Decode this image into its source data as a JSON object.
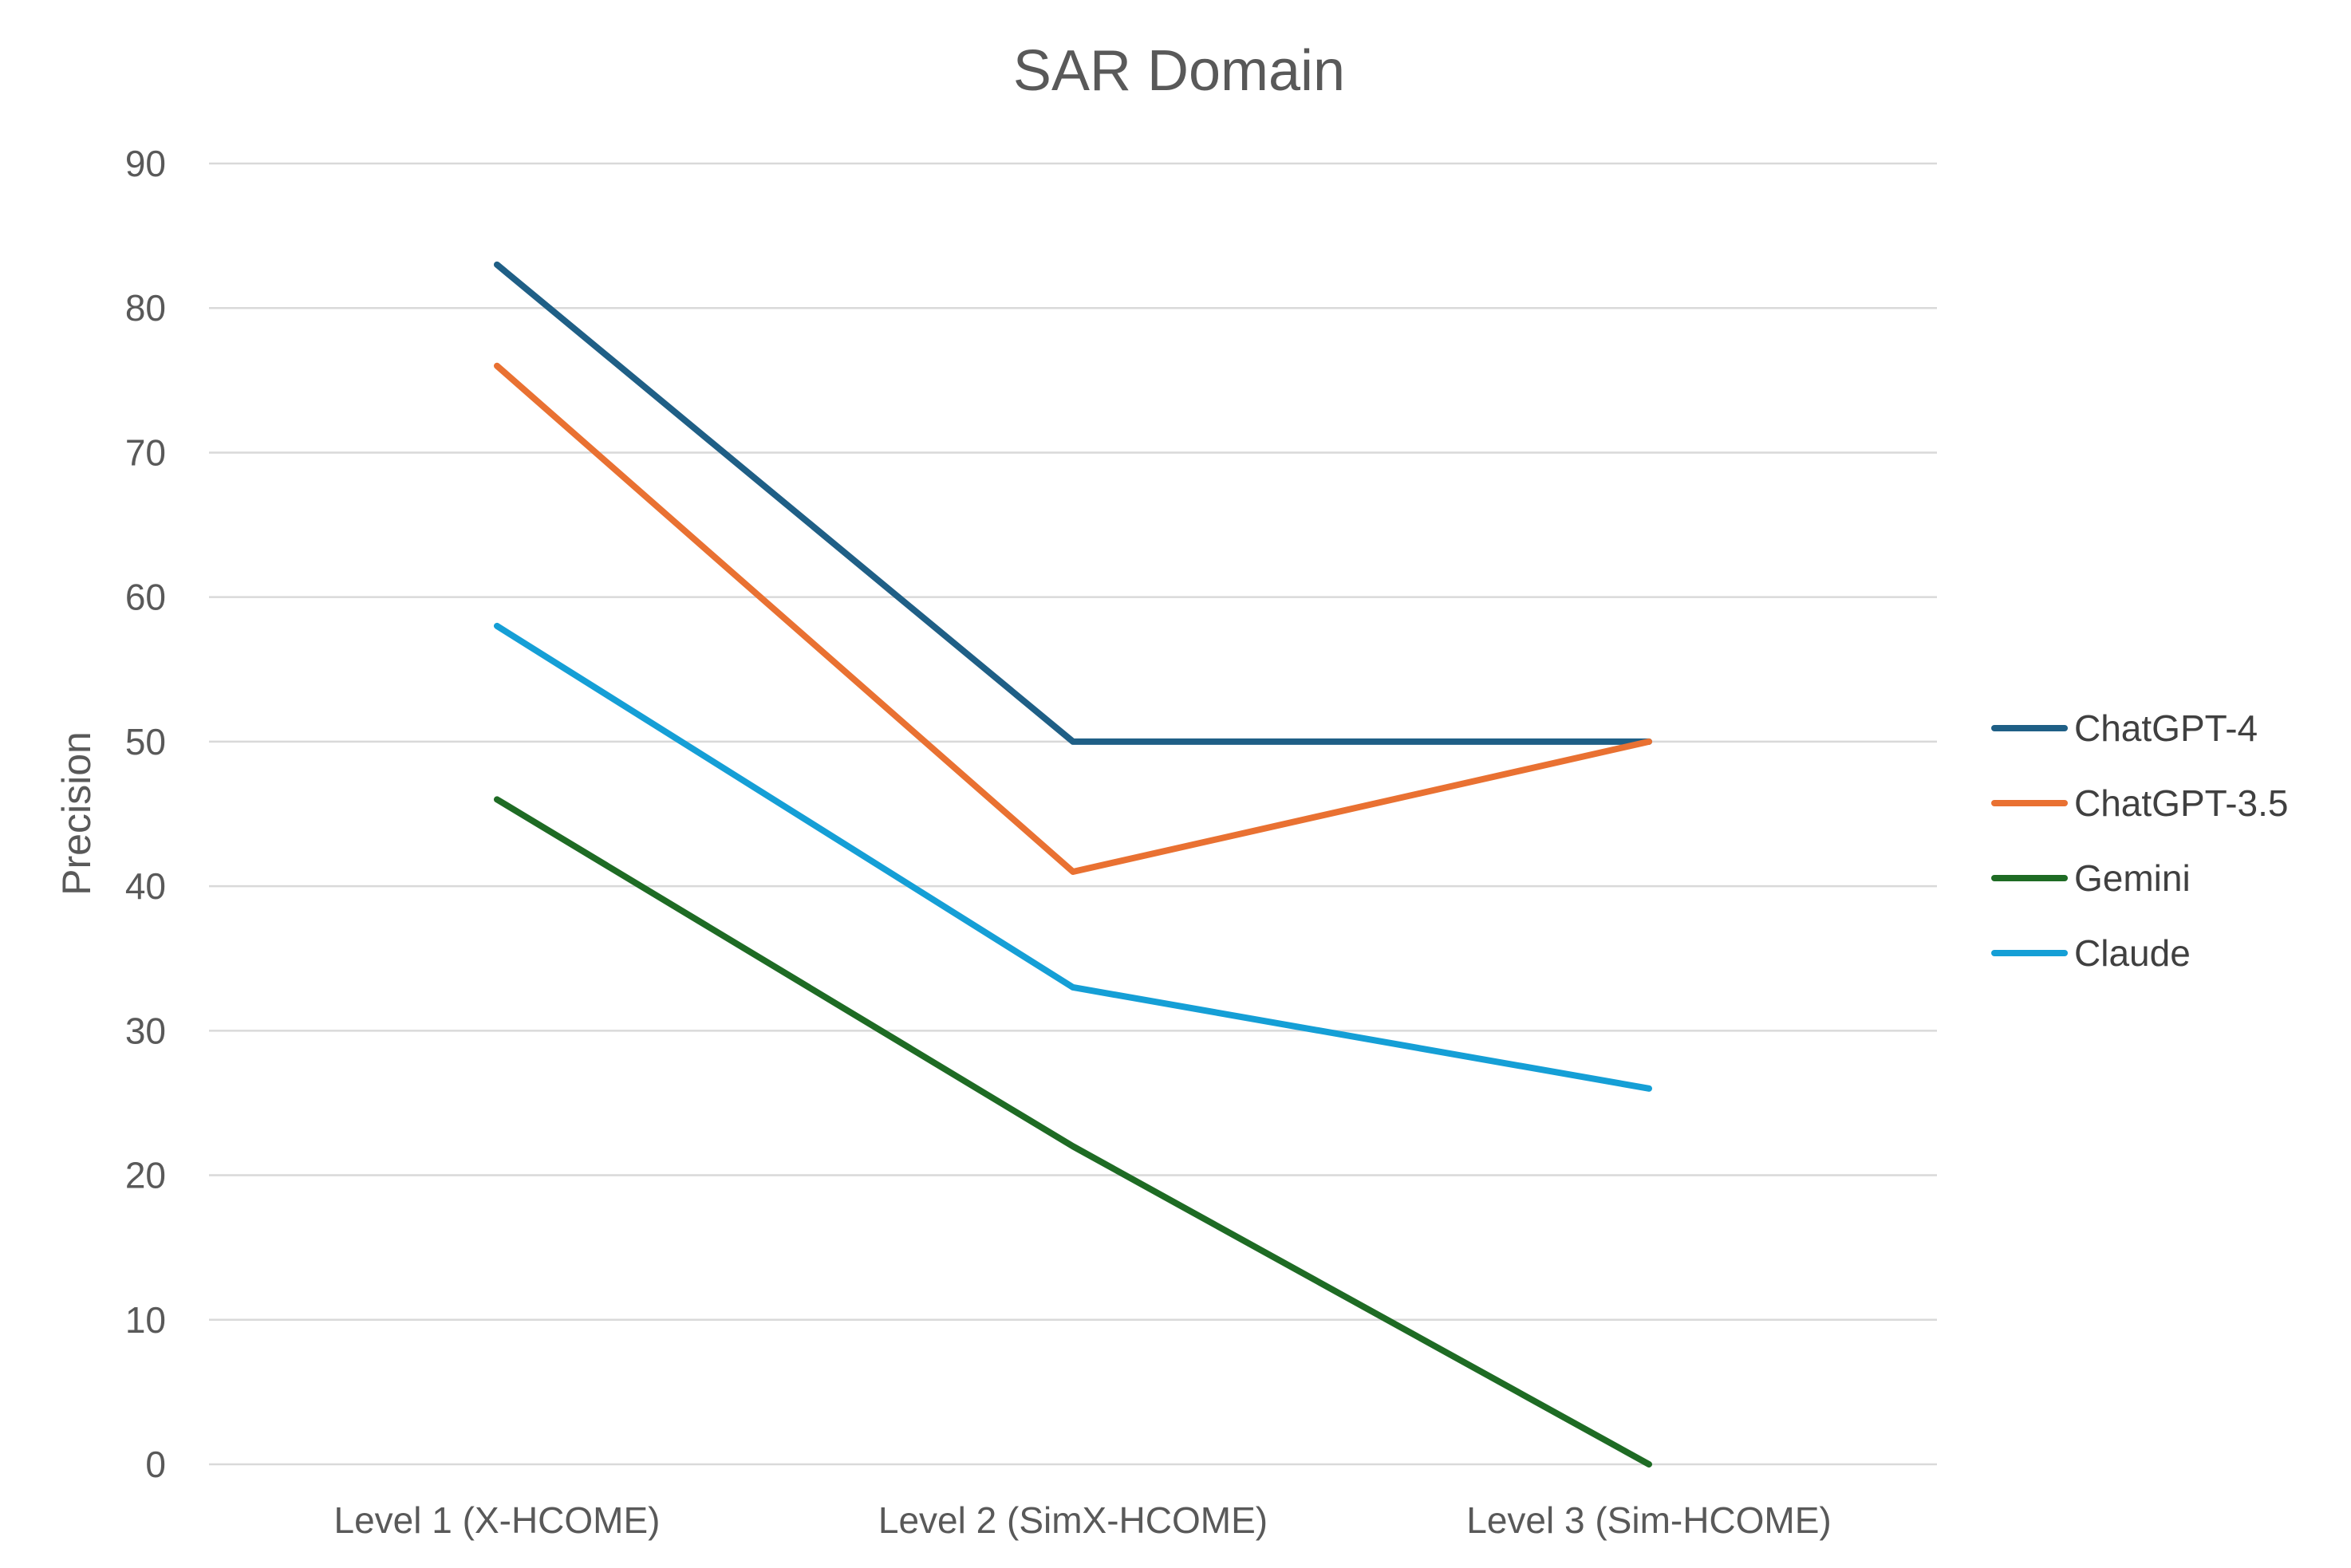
{
  "chart_data": {
    "type": "line",
    "title": "SAR Domain",
    "ylabel": "Precision",
    "xlabel": "",
    "categories": [
      "Level 1 (X-HCOME)",
      "Level 2 (SimX-HCOME)",
      "Level 3 (Sim-HCOME)"
    ],
    "ylim": [
      0,
      90
    ],
    "yticks": [
      "0",
      "10",
      "20",
      "30",
      "40",
      "50",
      "60",
      "70",
      "80",
      "90"
    ],
    "grid": true,
    "legend_position": "right",
    "series": [
      {
        "name": "ChatGPT-4",
        "color": "#1f5f86",
        "values": [
          83,
          50,
          50
        ]
      },
      {
        "name": "ChatGPT-3.5",
        "color": "#e97132",
        "values": [
          76,
          41,
          50
        ]
      },
      {
        "name": "Gemini",
        "color": "#1e6b24",
        "values": [
          46,
          22,
          0
        ]
      },
      {
        "name": "Claude",
        "color": "#159fd6",
        "values": [
          58,
          33,
          26
        ]
      }
    ]
  }
}
